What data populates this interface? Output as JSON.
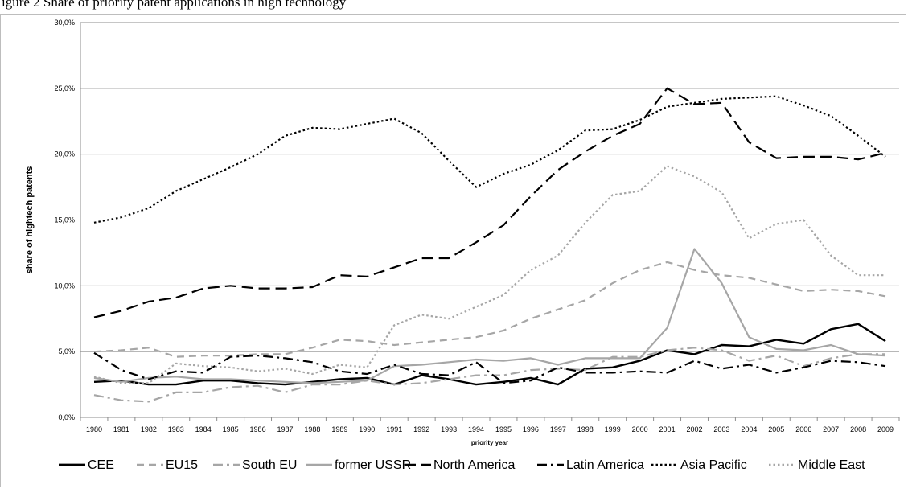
{
  "caption": "igure 2 Share of priority patent applications in high technology",
  "chart_data": {
    "type": "line",
    "title": "",
    "xlabel": "priority year",
    "ylabel": "share of hightech patents",
    "ylim": [
      0,
      30
    ],
    "y_ticks": [
      "0,0%",
      "5,0%",
      "10,0%",
      "15,0%",
      "20,0%",
      "25,0%",
      "30,0%"
    ],
    "grid": true,
    "legend_position": "bottom",
    "x": [
      "1980",
      "1981",
      "1982",
      "1983",
      "1984",
      "1985",
      "1986",
      "1987",
      "1988",
      "1989",
      "1990",
      "1991",
      "1992",
      "1993",
      "1994",
      "1995",
      "1996",
      "1997",
      "1998",
      "1999",
      "2000",
      "2001",
      "2002",
      "2003",
      "2004",
      "2005",
      "2006",
      "2007",
      "2008",
      "2009"
    ],
    "series": [
      {
        "name": "CEE",
        "color": "#000000",
        "dash": "solid",
        "width": 2.4,
        "values": [
          2.7,
          2.8,
          2.5,
          2.5,
          2.8,
          2.8,
          2.6,
          2.5,
          2.7,
          2.9,
          3.0,
          2.5,
          3.2,
          2.9,
          2.5,
          2.7,
          3.0,
          2.5,
          3.7,
          3.8,
          4.3,
          5.1,
          4.8,
          5.5,
          5.4,
          5.9,
          5.6,
          6.7,
          7.1,
          5.8
        ]
      },
      {
        "name": "EU15",
        "color": "#a6a6a6",
        "dash": "dashed",
        "width": 2.2,
        "values": [
          5.0,
          5.1,
          5.3,
          4.6,
          4.7,
          4.7,
          4.8,
          4.8,
          5.3,
          5.9,
          5.8,
          5.5,
          5.7,
          5.9,
          6.1,
          6.6,
          7.5,
          8.2,
          8.9,
          10.2,
          11.2,
          11.8,
          11.2,
          10.8,
          10.6,
          10.1,
          9.6,
          9.7,
          9.6,
          9.2
        ]
      },
      {
        "name": "South EU",
        "color": "#a6a6a6",
        "dash": "dashdot",
        "width": 2.2,
        "values": [
          1.7,
          1.3,
          1.2,
          1.9,
          1.9,
          2.3,
          2.4,
          1.9,
          2.5,
          2.5,
          2.8,
          2.5,
          2.6,
          2.9,
          3.2,
          3.2,
          3.6,
          3.7,
          3.6,
          4.6,
          4.6,
          5.1,
          5.3,
          5.1,
          4.3,
          4.7,
          3.9,
          4.5,
          4.8,
          4.8
        ]
      },
      {
        "name": "former USSR",
        "color": "#a6a6a6",
        "dash": "solid",
        "width": 2.2,
        "values": [
          3.0,
          2.7,
          3.0,
          3.1,
          2.9,
          2.9,
          2.8,
          2.7,
          2.6,
          2.7,
          2.8,
          3.9,
          4.0,
          4.2,
          4.4,
          4.3,
          4.5,
          4.0,
          4.5,
          4.5,
          4.5,
          6.8,
          12.8,
          10.2,
          6.1,
          5.2,
          5.1,
          5.5,
          4.8,
          4.7
        ]
      },
      {
        "name": "North America",
        "color": "#000000",
        "dash": "longdash",
        "width": 2.2,
        "values": [
          7.6,
          8.1,
          8.8,
          9.1,
          9.8,
          10.0,
          9.8,
          9.8,
          9.9,
          10.8,
          10.7,
          11.4,
          12.1,
          12.1,
          13.3,
          14.6,
          16.8,
          18.8,
          20.2,
          21.4,
          22.3,
          25.0,
          23.8,
          23.9,
          20.9,
          19.7,
          19.8,
          19.8,
          19.6,
          20.1
        ]
      },
      {
        "name": "Latin America",
        "color": "#000000",
        "dash": "dashdot",
        "width": 2.2,
        "values": [
          4.9,
          3.6,
          2.9,
          3.5,
          3.4,
          4.6,
          4.7,
          4.5,
          4.2,
          3.5,
          3.3,
          4.0,
          3.3,
          3.2,
          4.2,
          2.6,
          2.8,
          3.8,
          3.4,
          3.4,
          3.5,
          3.4,
          4.3,
          3.7,
          4.0,
          3.4,
          3.8,
          4.3,
          4.2,
          3.9
        ]
      },
      {
        "name": "Asia Pacific",
        "color": "#000000",
        "dash": "dotted",
        "width": 2.2,
        "values": [
          14.8,
          15.2,
          15.9,
          17.2,
          18.1,
          19.0,
          20.0,
          21.4,
          22.0,
          21.9,
          22.3,
          22.7,
          21.6,
          19.5,
          17.5,
          18.5,
          19.2,
          20.3,
          21.8,
          21.9,
          22.6,
          23.6,
          23.9,
          24.2,
          24.3,
          24.4,
          23.7,
          22.9,
          21.4,
          19.8
        ]
      },
      {
        "name": "Middle East",
        "color": "#a6a6a6",
        "dash": "dotted",
        "width": 2.2,
        "values": [
          3.1,
          2.6,
          2.6,
          4.1,
          3.9,
          3.8,
          3.5,
          3.7,
          3.3,
          4.0,
          3.8,
          7.0,
          7.8,
          7.5,
          8.4,
          9.3,
          11.2,
          12.3,
          14.8,
          16.9,
          17.2,
          19.1,
          18.3,
          17.1,
          13.6,
          14.7,
          15.0,
          12.3,
          10.8,
          10.8
        ]
      }
    ]
  }
}
